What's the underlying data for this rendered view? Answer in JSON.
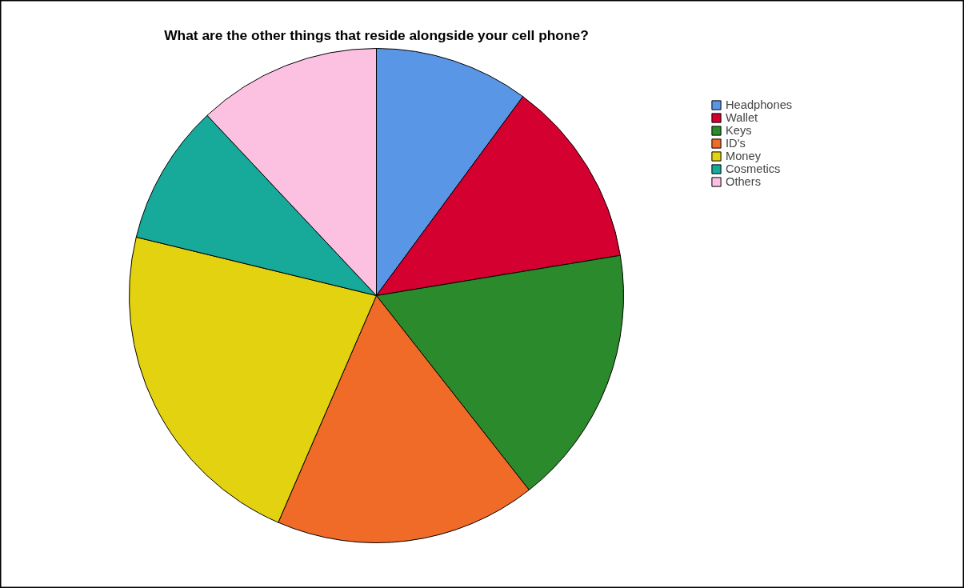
{
  "chart_data": {
    "type": "pie",
    "title": "What are the other things that reside alongside your cell phone?",
    "categories": [
      "Headphones",
      "Wallet",
      "Keys",
      "ID's",
      "Money",
      "Cosmetics",
      "Others"
    ],
    "values": [
      10.1,
      12.3,
      17.0,
      17.1,
      22.3,
      9.2,
      12.0
    ],
    "colors": [
      "#5a96e6",
      "#d4002f",
      "#2b8a2b",
      "#f06a28",
      "#e3d210",
      "#17a99a",
      "#fcc0e0"
    ],
    "legend": "top right"
  }
}
